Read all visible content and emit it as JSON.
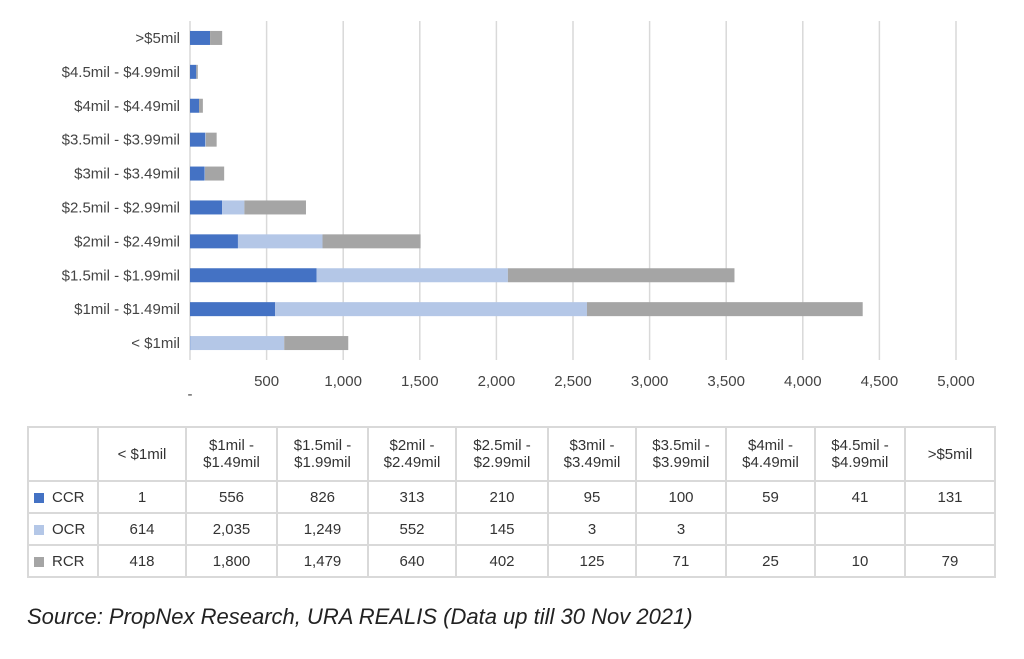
{
  "chart_data": {
    "type": "bar",
    "orientation": "horizontal",
    "stacked": true,
    "categories": [
      "< $1mil",
      "$1mil - $1.49mil",
      "$1.5mil - $1.99mil",
      "$2mil - $2.49mil",
      "$2.5mil - $2.99mil",
      "$3mil - $3.49mil",
      "$3.5mil - $3.99mil",
      "$4mil - $4.49mil",
      "$4.5mil - $4.99mil",
      ">$5mil"
    ],
    "series": [
      {
        "name": "CCR",
        "color": "#4472c4",
        "values": [
          1,
          556,
          826,
          313,
          210,
          95,
          100,
          59,
          41,
          131
        ]
      },
      {
        "name": "OCR",
        "color": "#b4c7e7",
        "values": [
          614,
          2035,
          1249,
          552,
          145,
          3,
          3,
          null,
          null,
          null
        ]
      },
      {
        "name": "RCR",
        "color": "#a5a5a5",
        "values": [
          418,
          1800,
          1479,
          640,
          402,
          125,
          71,
          25,
          10,
          79
        ]
      }
    ],
    "xlim": [
      0,
      5000
    ],
    "xticks": [
      0,
      500,
      1000,
      1500,
      2000,
      2500,
      3000,
      3500,
      4000,
      4500,
      5000
    ],
    "xtick_labels": [
      "-",
      "500",
      "1,000",
      "1,500",
      "2,000",
      "2,500",
      "3,000",
      "3,500",
      "4,000",
      "4,500",
      "5,000"
    ],
    "grid": true,
    "legend": "data-table"
  },
  "table": {
    "headers": [
      [
        "< $1mil"
      ],
      [
        "$1mil -",
        "$1.49mil"
      ],
      [
        "$1.5mil -",
        "$1.99mil"
      ],
      [
        "$2mil -",
        "$2.49mil"
      ],
      [
        "$2.5mil -",
        "$2.99mil"
      ],
      [
        "$3mil -",
        "$3.49mil"
      ],
      [
        "$3.5mil -",
        "$3.99mil"
      ],
      [
        "$4mil -",
        "$4.49mil"
      ],
      [
        "$4.5mil -",
        "$4.99mil"
      ],
      [
        ">$5mil"
      ]
    ],
    "rows": [
      {
        "name": "CCR",
        "color": "#4472c4",
        "cells": [
          "1",
          "556",
          "826",
          "313",
          "210",
          "95",
          "100",
          "59",
          "41",
          "131"
        ]
      },
      {
        "name": "OCR",
        "color": "#b4c7e7",
        "cells": [
          "614",
          "2,035",
          "1,249",
          "552",
          "145",
          "3",
          "3",
          "",
          "",
          ""
        ]
      },
      {
        "name": "RCR",
        "color": "#a5a5a5",
        "cells": [
          "418",
          "1,800",
          "1,479",
          "640",
          "402",
          "125",
          "71",
          "25",
          "10",
          "79"
        ]
      }
    ]
  },
  "source": "Source: PropNex Research, URA REALIS (Data up till 30 Nov 2021)"
}
